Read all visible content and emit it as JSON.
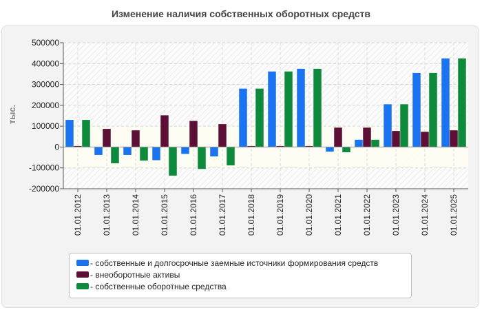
{
  "chart_data": {
    "type": "bar",
    "title": "Изменение наличия собственных оборотных средств",
    "ylabel": "тыс.",
    "xlabel": "",
    "ylim": [
      -200000,
      500000
    ],
    "yticks": [
      500000,
      400000,
      300000,
      200000,
      100000,
      0,
      -100000,
      -200000
    ],
    "ytick_labels": [
      "500000",
      "400000",
      "300000",
      "200000",
      "100000",
      "0",
      "-100000",
      "-200000"
    ],
    "categories": [
      "01.01.2012",
      "01.01.2013",
      "01.01.2014",
      "01.01.2015",
      "01.01.2016",
      "01.01.2017",
      "01.01.2018",
      "01.01.2019",
      "01.01.2020",
      "01.01.2021",
      "01.01.2022",
      "01.01.2023",
      "01.01.2024",
      "01.01.2025"
    ],
    "series": [
      {
        "name": "- собственные и долгосрочные заемные источники формирования средств",
        "color": "#1a73f0",
        "values": [
          130000,
          -38000,
          -38000,
          -63000,
          -33000,
          -45000,
          280000,
          362000,
          375000,
          -22000,
          35000,
          205000,
          355000,
          425000
        ]
      },
      {
        "name": "- внеоборотные активы",
        "color": "#5e0f35",
        "values": [
          5000,
          87000,
          80000,
          152000,
          125000,
          110000,
          5000,
          5000,
          5000,
          93000,
          93000,
          77000,
          73000,
          80000
        ]
      },
      {
        "name": "- собственные оборотные средства",
        "color": "#0d8a3c",
        "values": [
          130000,
          -78000,
          -65000,
          -137000,
          -105000,
          -88000,
          280000,
          362000,
          375000,
          -25000,
          35000,
          205000,
          355000,
          425000
        ]
      }
    ],
    "legend": "bottom",
    "grid": true
  }
}
